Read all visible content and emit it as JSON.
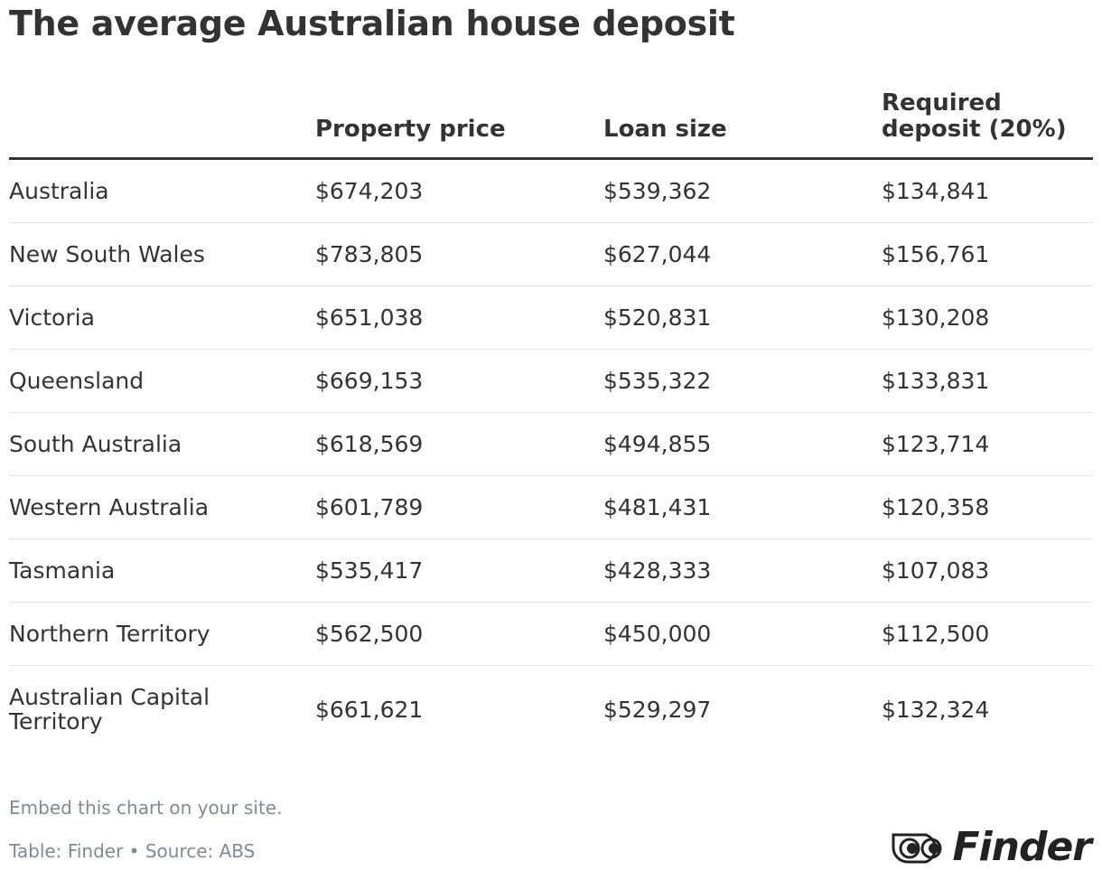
{
  "title": "The average Australian house deposit",
  "table": {
    "columns": [
      "Property price",
      "Loan size",
      "Required deposit (20%)"
    ],
    "rows": [
      [
        "Australia",
        "$674,203",
        "$539,362",
        "$134,841"
      ],
      [
        "New South Wales",
        "$783,805",
        "$627,044",
        "$156,761"
      ],
      [
        "Victoria",
        "$651,038",
        "$520,831",
        "$130,208"
      ],
      [
        "Queensland",
        "$669,153",
        "$535,322",
        "$133,831"
      ],
      [
        "South Australia",
        "$618,569",
        "$494,855",
        "$123,714"
      ],
      [
        "Western Australia",
        "$601,789",
        "$481,431",
        "$120,358"
      ],
      [
        "Tasmania",
        "$535,417",
        "$428,333",
        "$107,083"
      ],
      [
        "Northern Territory",
        "$562,500",
        "$450,000",
        "$112,500"
      ],
      [
        "Australian Capital Territory",
        "$661,621",
        "$529,297",
        "$132,324"
      ]
    ]
  },
  "footer": {
    "embed": "Embed this chart on your site.",
    "source": "Table: Finder • Source: ABS"
  },
  "logo": {
    "text": "Finder"
  }
}
